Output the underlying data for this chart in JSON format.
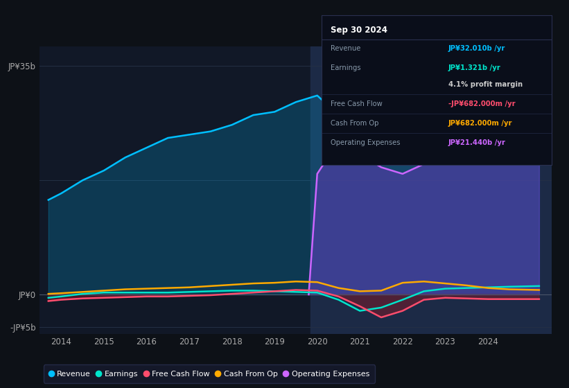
{
  "background_color": "#0d1117",
  "chart_bg": "#111827",
  "ylim": [
    -6,
    38
  ],
  "xlim": [
    2013.5,
    2025.5
  ],
  "x_ticks": [
    2014,
    2015,
    2016,
    2017,
    2018,
    2019,
    2020,
    2021,
    2022,
    2023,
    2024
  ],
  "y_label_top": "JP¥35b",
  "y_label_zero": "JP¥0",
  "y_label_neg": "-JP¥5b",
  "colors": {
    "revenue": "#00bfff",
    "earnings": "#00e5cc",
    "free_cash_flow": "#ff4d6d",
    "cash_from_op": "#ffaa00",
    "operating_expenses": "#cc66ff"
  },
  "revenue_x": [
    2013.7,
    2014.0,
    2014.5,
    2015.0,
    2015.5,
    2016.0,
    2016.5,
    2017.0,
    2017.5,
    2018.0,
    2018.5,
    2019.0,
    2019.5,
    2020.0,
    2020.5,
    2021.0,
    2021.5,
    2022.0,
    2022.5,
    2023.0,
    2023.5,
    2024.0,
    2024.5,
    2025.2
  ],
  "revenue_y": [
    14.5,
    15.5,
    17.5,
    19.0,
    21.0,
    22.5,
    24.0,
    24.5,
    25.0,
    26.0,
    27.5,
    28.0,
    29.5,
    30.5,
    27.5,
    22.5,
    21.0,
    23.0,
    26.0,
    27.5,
    29.5,
    31.0,
    32.5,
    33.8
  ],
  "earnings_x": [
    2013.7,
    2014.0,
    2014.5,
    2015.0,
    2015.5,
    2016.0,
    2016.5,
    2017.0,
    2017.5,
    2018.0,
    2018.5,
    2019.0,
    2019.5,
    2020.0,
    2020.5,
    2021.0,
    2021.5,
    2022.0,
    2022.5,
    2023.0,
    2023.5,
    2024.0,
    2024.5,
    2025.2
  ],
  "earnings_y": [
    -0.5,
    -0.3,
    0.1,
    0.3,
    0.3,
    0.3,
    0.3,
    0.4,
    0.5,
    0.6,
    0.6,
    0.5,
    0.4,
    0.3,
    -0.8,
    -2.5,
    -2.0,
    -0.8,
    0.5,
    0.9,
    1.0,
    1.1,
    1.2,
    1.3
  ],
  "fcf_x": [
    2013.7,
    2014.0,
    2014.5,
    2015.0,
    2015.5,
    2016.0,
    2016.5,
    2017.0,
    2017.5,
    2018.0,
    2018.5,
    2019.0,
    2019.5,
    2020.0,
    2020.5,
    2021.0,
    2021.5,
    2022.0,
    2022.5,
    2023.0,
    2023.5,
    2024.0,
    2024.5,
    2025.2
  ],
  "fcf_y": [
    -1.0,
    -0.8,
    -0.6,
    -0.5,
    -0.4,
    -0.3,
    -0.3,
    -0.2,
    -0.1,
    0.1,
    0.3,
    0.5,
    0.7,
    0.6,
    -0.3,
    -1.8,
    -3.5,
    -2.5,
    -0.8,
    -0.5,
    -0.6,
    -0.7,
    -0.7,
    -0.7
  ],
  "cop_x": [
    2013.7,
    2014.0,
    2014.5,
    2015.0,
    2015.5,
    2016.0,
    2016.5,
    2017.0,
    2017.5,
    2018.0,
    2018.5,
    2019.0,
    2019.5,
    2020.0,
    2020.5,
    2021.0,
    2021.5,
    2022.0,
    2022.5,
    2023.0,
    2023.5,
    2024.0,
    2024.5,
    2025.2
  ],
  "cop_y": [
    0.1,
    0.2,
    0.4,
    0.6,
    0.8,
    0.9,
    1.0,
    1.1,
    1.3,
    1.5,
    1.7,
    1.8,
    2.0,
    1.9,
    1.0,
    0.5,
    0.6,
    1.8,
    2.0,
    1.7,
    1.4,
    1.0,
    0.8,
    0.7
  ],
  "opex_x": [
    2019.8,
    2020.0,
    2020.3,
    2020.5,
    2021.0,
    2021.5,
    2022.0,
    2022.5,
    2023.0,
    2023.5,
    2024.0,
    2024.5,
    2025.2
  ],
  "opex_y": [
    0.0,
    18.5,
    21.5,
    23.0,
    21.5,
    19.5,
    18.5,
    20.0,
    21.5,
    22.5,
    23.5,
    24.0,
    24.5
  ],
  "highlight_x_start": 2019.85,
  "tooltip_title": "Sep 30 2024",
  "tooltip_rows": [
    {
      "label": "Revenue",
      "value": "JP¥32.010b /yr",
      "value_color": "#00bfff",
      "div_before": false
    },
    {
      "label": "Earnings",
      "value": "JP¥1.321b /yr",
      "value_color": "#00e5cc",
      "div_before": false
    },
    {
      "label": "",
      "value": "4.1% profit margin",
      "value_color": "#cccccc",
      "div_before": false
    },
    {
      "label": "Free Cash Flow",
      "value": "-JP¥682.000m /yr",
      "value_color": "#ff4d6d",
      "div_before": true
    },
    {
      "label": "Cash From Op",
      "value": "JP¥682.000m /yr",
      "value_color": "#ffaa00",
      "div_before": true
    },
    {
      "label": "Operating Expenses",
      "value": "JP¥21.440b /yr",
      "value_color": "#cc66ff",
      "div_before": true
    }
  ],
  "legend": [
    {
      "label": "Revenue",
      "color": "#00bfff"
    },
    {
      "label": "Earnings",
      "color": "#00e5cc"
    },
    {
      "label": "Free Cash Flow",
      "color": "#ff4d6d"
    },
    {
      "label": "Cash From Op",
      "color": "#ffaa00"
    },
    {
      "label": "Operating Expenses",
      "color": "#cc66ff"
    }
  ]
}
